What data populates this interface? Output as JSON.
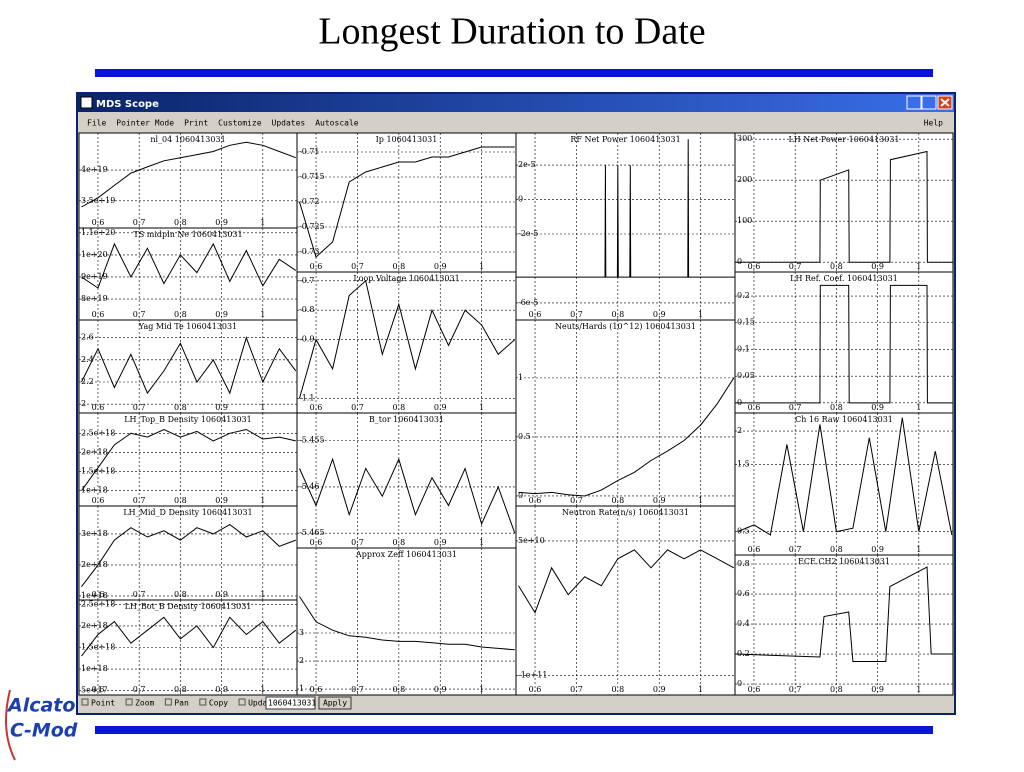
{
  "slide": {
    "title": "Longest Duration to Date",
    "logo": [
      "Alcator",
      "C-Mod"
    ]
  },
  "window": {
    "title": "MDS Scope",
    "menu": [
      "File",
      "Pointer Mode",
      "Print",
      "Customize",
      "Updates",
      "Autoscale"
    ],
    "help": "Help",
    "toolbar": [
      "Point",
      "Zoom",
      "Pan",
      "Copy",
      "Updates"
    ],
    "shot": "1060413031",
    "apply": "Apply"
  },
  "xaxis": {
    "xlim": [
      0.554,
      1.083
    ],
    "xticks": [
      0.6,
      0.7,
      0.8,
      0.9,
      1
    ]
  },
  "panels": [
    {
      "title": "nl_04  1060413031",
      "ylim": [
        3.06e+19,
        4.6e+19
      ],
      "yticks": [
        {
          "value": 4e+19,
          "label": "4e+19"
        },
        {
          "value": 3.5e+19,
          "label": "3.5e+19"
        }
      ],
      "x": [
        0.56,
        0.6,
        0.64,
        0.68,
        0.72,
        0.76,
        0.8,
        0.84,
        0.88,
        0.92,
        0.96,
        1.0,
        1.04,
        1.08
      ],
      "values": [
        3.4e+19,
        3.55e+19,
        3.75e+19,
        3.95e+19,
        4.05e+19,
        4.15e+19,
        4.2e+19,
        4.25e+19,
        4.3e+19,
        4.4e+19,
        4.45e+19,
        4.4e+19,
        4.3e+19,
        4.2e+19
      ]
    },
    {
      "title": "TS midpln Ne  1060413031",
      "ylim": [
        7.05e+19,
        1.122e+20
      ],
      "yticks": [
        {
          "value": 1.1e+20,
          "label": "1.1e+20"
        },
        {
          "value": 1e+20,
          "label": "1e+20"
        },
        {
          "value": 9e+19,
          "label": "9e+19"
        },
        {
          "value": 8e+19,
          "label": "8e+19"
        }
      ],
      "x": [
        0.56,
        0.6,
        0.64,
        0.68,
        0.72,
        0.76,
        0.8,
        0.84,
        0.88,
        0.92,
        0.96,
        1.0,
        1.04,
        1.08
      ],
      "values": [
        9e+19,
        8.5e+19,
        1.05e+20,
        9e+19,
        1.03e+20,
        8.7e+19,
        1e+20,
        9.2e+19,
        1.05e+20,
        8.8e+19,
        1.02e+20,
        8.6e+19,
        9.8e+19,
        9.3e+19
      ]
    },
    {
      "title": "Yag Mid Te  1060413031",
      "ylim": [
        1.92,
        2.76
      ],
      "yticks": [
        2.6,
        2.4,
        2.2,
        2
      ],
      "x": [
        0.56,
        0.6,
        0.64,
        0.68,
        0.72,
        0.76,
        0.8,
        0.84,
        0.88,
        0.92,
        0.96,
        1.0,
        1.04,
        1.08
      ],
      "values": [
        2.2,
        2.5,
        2.15,
        2.45,
        2.1,
        2.3,
        2.55,
        2.2,
        2.4,
        2.1,
        2.6,
        2.2,
        2.5,
        2.3
      ]
    },
    {
      "title": "LH_Top_B Density  1060413031",
      "ylim": [
        6e+17,
        3.03e+18
      ],
      "yticks": [
        {
          "value": 2.5e+18,
          "label": "2.5e+18"
        },
        {
          "value": 2e+18,
          "label": "2e+18"
        },
        {
          "value": 1.5e+18,
          "label": "1.5e+18"
        },
        {
          "value": 1e+18,
          "label": "1e+18"
        }
      ],
      "x": [
        0.56,
        0.6,
        0.64,
        0.68,
        0.72,
        0.76,
        0.8,
        0.84,
        0.88,
        0.92,
        0.96,
        1.0,
        1.04,
        1.08
      ],
      "values": [
        1e+18,
        1.6e+18,
        2.2e+18,
        2.5e+18,
        2.4e+18,
        2.6e+18,
        2.4e+18,
        2.55e+18,
        2.3e+18,
        2.5e+18,
        2.6e+18,
        2.35e+18,
        2.4e+18,
        2.3e+18
      ]
    },
    {
      "title": "LH_Mid_D Density  1060413031",
      "ylim": [
        8.7e+17,
        3.9e+18
      ],
      "yticks": [
        {
          "value": 3e+18,
          "label": "3e+18"
        },
        {
          "value": 2e+18,
          "label": "2e+18"
        },
        {
          "value": 1e+18,
          "label": "1e+18"
        }
      ],
      "x": [
        0.56,
        0.6,
        0.64,
        0.68,
        0.72,
        0.76,
        0.8,
        0.84,
        0.88,
        0.92,
        0.96,
        1.0,
        1.04,
        1.08
      ],
      "values": [
        1.3e+18,
        2e+18,
        2.8e+18,
        3.2e+18,
        2.9e+18,
        3.1e+18,
        2.8e+18,
        3.2e+18,
        3e+18,
        3.3e+18,
        2.9e+18,
        3.1e+18,
        2.6e+18,
        2.8e+18
      ]
    },
    {
      "title": "LH_Bot_B Density  1060413031",
      "ylim": [
        4e+17,
        2.6e+18
      ],
      "yticks": [
        {
          "value": 2.5e+18,
          "label": "2.5e+18"
        },
        {
          "value": 2e+18,
          "label": "2e+18"
        },
        {
          "value": 1.5e+18,
          "label": "1.5e+18"
        },
        {
          "value": 1e+18,
          "label": "1e+18"
        },
        {
          "value": 5e+17,
          "label": "5e+17"
        }
      ],
      "x": [
        0.56,
        0.6,
        0.64,
        0.68,
        0.72,
        0.76,
        0.8,
        0.84,
        0.88,
        0.92,
        0.96,
        1.0,
        1.04,
        1.08
      ],
      "values": [
        1.3e+18,
        1.8e+18,
        2.1e+18,
        1.6e+18,
        1.9e+18,
        2.2e+18,
        1.7e+18,
        2e+18,
        1.5e+18,
        2.2e+18,
        1.8e+18,
        2.1e+18,
        1.6e+18,
        1.9e+18
      ]
    },
    {
      "title": "Ip  1060413031",
      "ylim": [
        -0.734,
        -0.7062
      ],
      "yticks": [
        -0.71,
        -0.715,
        -0.72,
        -0.725,
        -0.73
      ],
      "x": [
        0.56,
        0.6,
        0.64,
        0.68,
        0.72,
        0.76,
        0.8,
        0.84,
        0.88,
        0.92,
        0.96,
        1.0,
        1.04,
        1.08
      ],
      "values": [
        -0.72,
        -0.731,
        -0.728,
        -0.716,
        -0.714,
        -0.713,
        -0.712,
        -0.712,
        -0.711,
        -0.711,
        -0.71,
        -0.709,
        -0.709,
        -0.709
      ]
    },
    {
      "title": "Loop Voltage  1060413031",
      "ylim": [
        -1.15,
        -0.67
      ],
      "yticks": [
        -0.7,
        -0.8,
        -0.9,
        -1.1
      ],
      "x": [
        0.56,
        0.6,
        0.64,
        0.68,
        0.72,
        0.76,
        0.8,
        0.84,
        0.88,
        0.92,
        0.96,
        1.0,
        1.04,
        1.08
      ],
      "values": [
        -1.1,
        -0.9,
        -1,
        -0.75,
        -0.7,
        -0.95,
        -0.78,
        -1,
        -0.8,
        -0.92,
        -0.8,
        -0.85,
        -0.95,
        -0.9
      ]
    },
    {
      "title": "B_tor  1060413031",
      "ylim": [
        -5.4666,
        -5.452
      ],
      "yticks": [
        -5.455,
        -5.46,
        -5.465
      ],
      "x": [
        0.56,
        0.6,
        0.64,
        0.68,
        0.72,
        0.76,
        0.8,
        0.84,
        0.88,
        0.92,
        0.96,
        1.0,
        1.04,
        1.08
      ],
      "values": [
        -5.458,
        -5.462,
        -5.457,
        -5.463,
        -5.458,
        -5.461,
        -5.457,
        -5.463,
        -5.459,
        -5.462,
        -5.458,
        -5.464,
        -5.46,
        -5.465
      ]
    },
    {
      "title": "Approx Zeff  1060413031",
      "ylim": [
        0.79,
        6.03
      ],
      "yticks": [
        3,
        2,
        1
      ],
      "x": [
        0.56,
        0.6,
        0.64,
        0.68,
        0.72,
        0.76,
        0.8,
        0.84,
        0.88,
        0.92,
        0.96,
        1.0,
        1.04,
        1.08
      ],
      "values": [
        4.3,
        3.4,
        3.1,
        2.9,
        2.85,
        2.75,
        2.7,
        2.7,
        2.65,
        2.6,
        2.6,
        2.5,
        2.45,
        2.4
      ]
    },
    {
      "title": "RF Net Power  1060413031",
      "ylim": [
        -6.99e-05,
        3.86e-05
      ],
      "yticks": [
        {
          "value": 2e-05,
          "label": "2e-5"
        },
        0,
        {
          "value": -2e-05,
          "label": "-2e-5"
        },
        {
          "value": -6e-05,
          "label": "-6e-5"
        }
      ],
      "x": [
        0.554,
        0.769,
        0.77,
        0.771,
        0.799,
        0.8,
        0.801,
        0.829,
        0.83,
        0.831,
        0.969,
        0.97,
        0.971,
        1.083
      ],
      "values": [
        -4.5e-05,
        -4.5e-05,
        2e-05,
        -4.5e-05,
        -4.5e-05,
        2e-05,
        -4.5e-05,
        -4.5e-05,
        2e-05,
        -4.5e-05,
        -4.5e-05,
        3.5e-05,
        -4.5e-05,
        -4.5e-05
      ]
    },
    {
      "title": "Neuts/Hards (10^12)  1060413031",
      "ylim": [
        -0.085,
        1.49
      ],
      "yticks": [
        1,
        0.5,
        0
      ],
      "x": [
        0.56,
        0.6,
        0.64,
        0.68,
        0.72,
        0.76,
        0.8,
        0.84,
        0.88,
        0.92,
        0.96,
        1.0,
        1.04,
        1.08
      ],
      "values": [
        0.03,
        0.02,
        0.03,
        0.01,
        0,
        0.05,
        0.13,
        0.2,
        0.3,
        0.38,
        0.47,
        0.6,
        0.78,
        1
      ]
    },
    {
      "title": "Neutron Rate(n/s)  1060413031",
      "ylim": [
        -122000000000.0,
        89000000000.0
      ],
      "yticks": [
        {
          "value": 50000000000.0,
          "label": "5e+10"
        },
        {
          "value": -100000000000.0,
          "label": "-1e+11"
        }
      ],
      "x": [
        0.56,
        0.6,
        0.64,
        0.68,
        0.72,
        0.76,
        0.8,
        0.84,
        0.88,
        0.92,
        0.96,
        1.0,
        1.04,
        1.08
      ],
      "values": [
        0,
        -30000000000.0,
        20000000000.0,
        -10000000000.0,
        10000000000.0,
        0,
        30000000000.0,
        40000000000.0,
        20000000000.0,
        40000000000.0,
        30000000000.0,
        40000000000.0,
        30000000000.0,
        20000000000.0
      ]
    },
    {
      "title": "LH Net Power  1060413031",
      "ylim": [
        -24,
        315
      ],
      "yticks": [
        300,
        200,
        100,
        0
      ],
      "x": [
        0.554,
        0.76,
        0.761,
        0.83,
        0.831,
        0.93,
        0.931,
        1.02,
        1.021,
        1.083
      ],
      "values": [
        0,
        0,
        200,
        225,
        0,
        0,
        250,
        270,
        0,
        0
      ]
    },
    {
      "title": "LH Ref. Coef.  1060413031",
      "ylim": [
        -0.019,
        0.245
      ],
      "yticks": [
        0.2,
        0.15,
        0.1,
        0.05,
        0
      ],
      "x": [
        0.554,
        0.76,
        0.761,
        0.83,
        0.831,
        0.93,
        0.931,
        1.02,
        1.021,
        1.083
      ],
      "values": [
        0,
        0,
        0.22,
        0.22,
        0,
        0,
        0.22,
        0.22,
        0,
        0
      ]
    },
    {
      "title": "Ch 16 Raw  1060413031",
      "ylim": [
        0.15,
        2.27
      ],
      "yticks": [
        2,
        1.5,
        0.5
      ],
      "x": [
        0.56,
        0.6,
        0.64,
        0.68,
        0.72,
        0.76,
        0.8,
        0.84,
        0.88,
        0.92,
        0.96,
        1.0,
        1.04,
        1.08
      ],
      "values": [
        0.5,
        0.6,
        0.45,
        1.8,
        0.5,
        2.1,
        0.5,
        0.55,
        1.9,
        0.5,
        2.2,
        0.5,
        1.7,
        0.45
      ]
    },
    {
      "title": "ECE.CH2  1060413031",
      "ylim": [
        -0.073,
        0.86
      ],
      "yticks": [
        0.8,
        0.6,
        0.4,
        0.2,
        0
      ],
      "x": [
        0.554,
        0.76,
        0.77,
        0.83,
        0.84,
        0.92,
        0.93,
        1.02,
        1.03,
        1.083
      ],
      "values": [
        0.2,
        0.18,
        0.45,
        0.48,
        0.15,
        0.15,
        0.65,
        0.78,
        0.2,
        0.2
      ]
    }
  ]
}
